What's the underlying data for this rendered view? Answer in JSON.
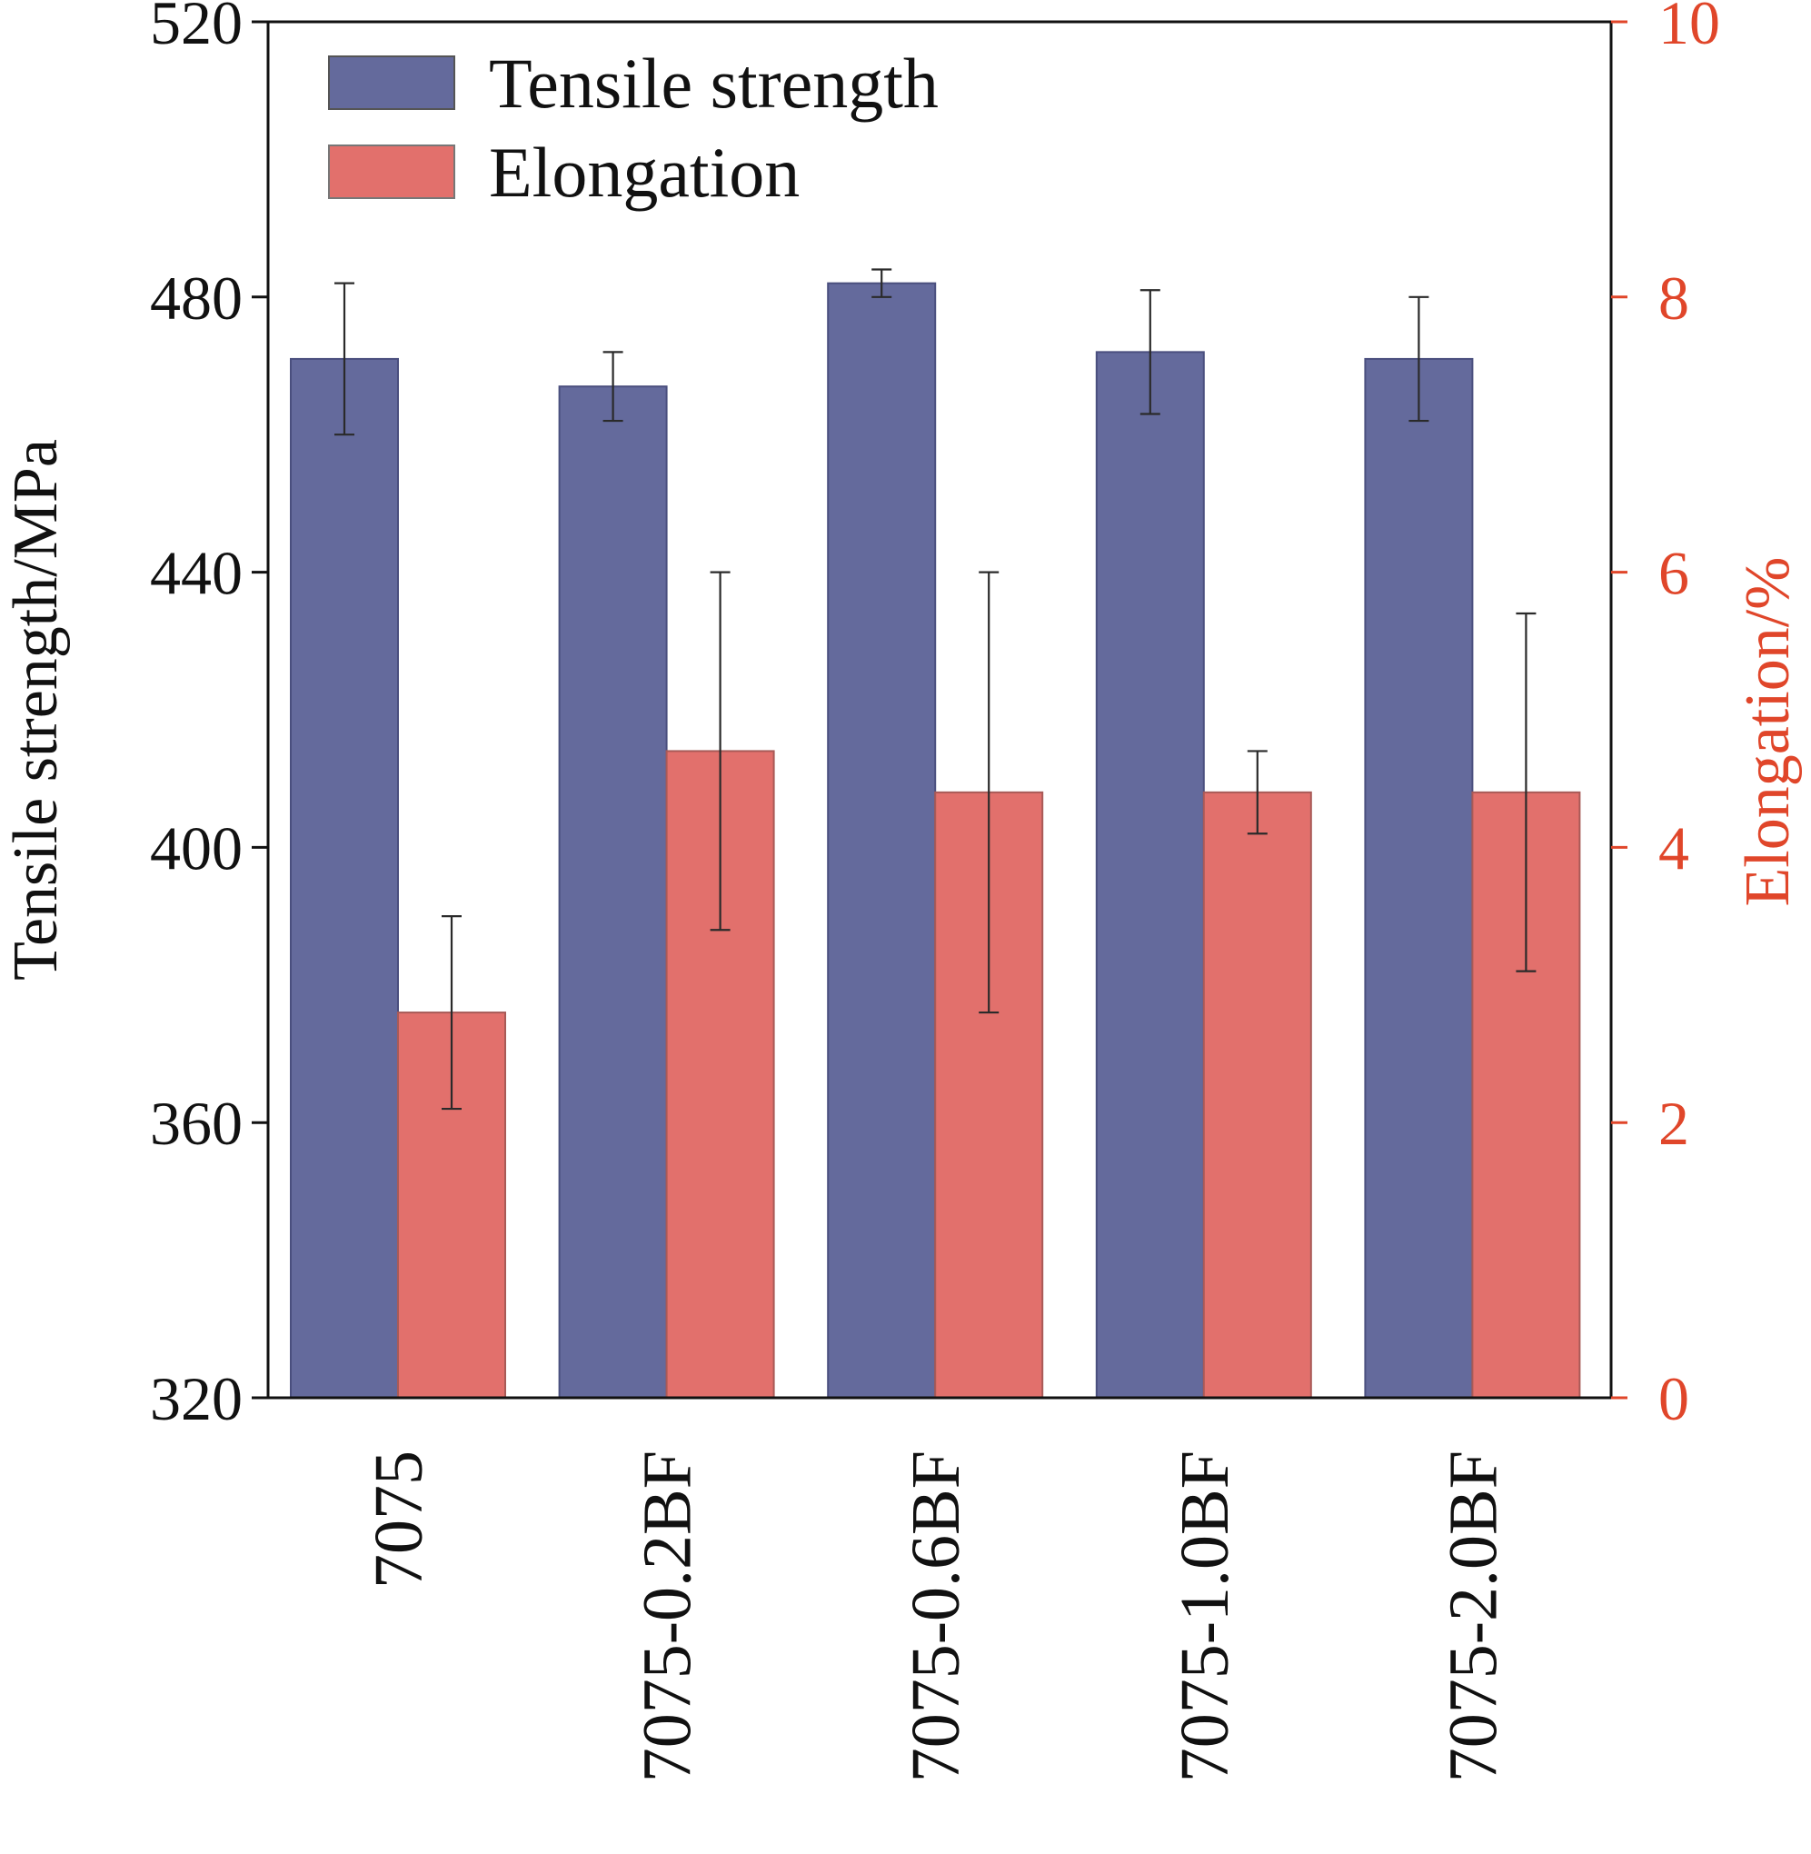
{
  "chart_data": {
    "type": "bar",
    "categories": [
      "7075",
      "7075-0.2BF",
      "7075-0.6BF",
      "7075-1.0BF",
      "7075-2.0BF"
    ],
    "series": [
      {
        "name": "Tensile strength",
        "axis": "left",
        "color": "#646a9c",
        "values": [
          471,
          467,
          482,
          472,
          471
        ],
        "errors": [
          11,
          5,
          2,
          9,
          9
        ]
      },
      {
        "name": "Elongation",
        "axis": "right",
        "color": "#e2706c",
        "values": [
          2.8,
          4.7,
          4.4,
          4.4,
          4.4
        ],
        "errors": [
          0.7,
          1.3,
          1.6,
          0.3,
          1.3
        ]
      }
    ],
    "ylabel": "Tensile strength/MPa",
    "ylim": [
      320,
      520
    ],
    "yticks": [
      320,
      360,
      400,
      440,
      480,
      520
    ],
    "y2label": "Elongation/%",
    "y2lim": [
      0,
      10
    ],
    "y2ticks": [
      0,
      2,
      4,
      6,
      8,
      10
    ],
    "y2_color": "#e0462a",
    "legend_position": "top-left",
    "grid": false
  }
}
